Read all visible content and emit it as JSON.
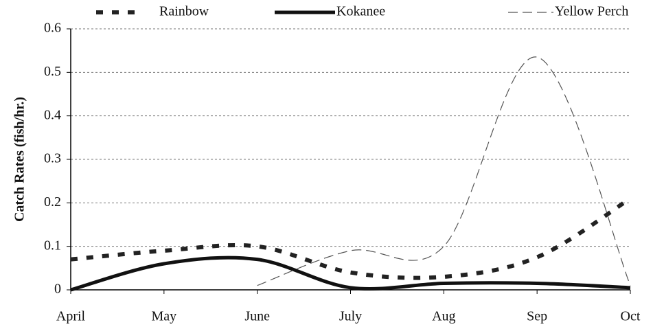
{
  "chart_data": {
    "type": "line",
    "y_label": "Catch Rates (fish/hr.)",
    "categories": [
      "April",
      "May",
      "June",
      "July",
      "Aug",
      "Sep",
      "Oct"
    ],
    "series": [
      {
        "name": "Rainbow",
        "color": "#222222",
        "style": "dotted",
        "values": [
          0.07,
          0.09,
          0.1,
          0.04,
          0.03,
          0.075,
          0.21
        ]
      },
      {
        "name": "Kokanee",
        "color": "#111111",
        "style": "solid",
        "values": [
          0,
          0.06,
          0.07,
          0.005,
          0.015,
          0.015,
          0.005
        ]
      },
      {
        "name": "Yellow Perch",
        "color": "#555555",
        "style": "dashed",
        "values": [
          null,
          null,
          0.01,
          0.09,
          0.1,
          0.535,
          0.01
        ]
      }
    ],
    "ylim": [
      0,
      0.6
    ],
    "yticks": [
      0,
      0.1,
      0.2,
      0.3,
      0.4,
      0.5,
      0.6
    ],
    "grid": true,
    "smooth": true,
    "legend": "top"
  }
}
